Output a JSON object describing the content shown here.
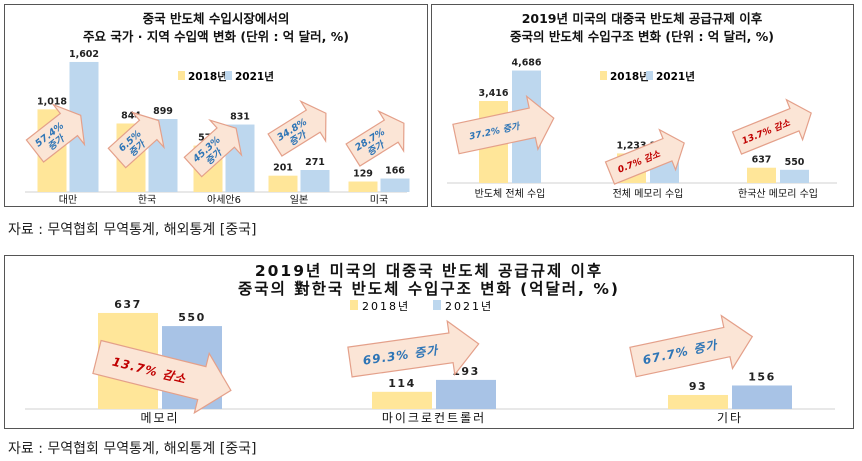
{
  "colors": {
    "y2018": "#FFE699",
    "y2021": "#BDD7EE",
    "y2021_dark": "#A8C3E6",
    "decrease_text": "#C00000",
    "increase_text": "#2E75B6",
    "arrow_fill": "#FBE5D6",
    "arrow_stroke": "#E4A08A"
  },
  "sources": {
    "top": "자료 : 무역협회 무역통계, 해외통계 [중국]",
    "bottom": "자료 : 무역협회 무역통계, 해외통계 [중국]"
  },
  "chart_data": [
    {
      "type": "bar",
      "title": "중국 반도체 수입시장에서의",
      "subtitle": "주요 국가 · 지역 수입액 변화 (단위 : 억 달러, %)",
      "categories": [
        "대만",
        "한국",
        "아세안6",
        "일본",
        "미국"
      ],
      "series": [
        {
          "name": "2018년",
          "values": [
            1018,
            844,
            572,
            201,
            129
          ]
        },
        {
          "name": "2021년",
          "values": [
            1602,
            899,
            831,
            271,
            166
          ]
        }
      ],
      "value_labels": [
        [
          "1,018",
          "844",
          "572",
          "201",
          "129"
        ],
        [
          "1,602",
          "899",
          "831",
          "271",
          "166"
        ]
      ],
      "annotations": [
        {
          "line1": "57.4%",
          "line2": "증가",
          "type": "increase"
        },
        {
          "line1": "6.5%",
          "line2": "증가",
          "type": "increase"
        },
        {
          "line1": "45.3%",
          "line2": "증가",
          "type": "increase"
        },
        {
          "line1": "34.8%",
          "line2": "증가",
          "type": "increase"
        },
        {
          "line1": "28.7%",
          "line2": "증가",
          "type": "increase"
        }
      ],
      "ylim": [
        0,
        1700
      ],
      "legend": "top-right",
      "grid": false
    },
    {
      "type": "bar",
      "title": "2019년 미국의 대중국 반도체 공급규제 이후",
      "subtitle": "중국의 반도체 수입구조 변화 (단위 : 억 달러, %)",
      "categories": [
        "반도체 전체 수입",
        "전체 메모리 수입",
        "한국산 메모리 수입"
      ],
      "series": [
        {
          "name": "2018년",
          "values": [
            3416,
            1233,
            637
          ]
        },
        {
          "name": "2021년",
          "values": [
            4686,
            1224,
            550
          ]
        }
      ],
      "value_labels": [
        [
          "3,416",
          "1,233",
          "637"
        ],
        [
          "4,686",
          "1,224",
          "550"
        ]
      ],
      "annotations": [
        {
          "line1": "37.2% 증가",
          "type": "increase"
        },
        {
          "line1": "0.7% 감소",
          "type": "decrease"
        },
        {
          "line1": "13.7% 감소",
          "type": "decrease"
        }
      ],
      "ylim": [
        0,
        5000
      ],
      "legend": "top-right",
      "grid": false
    },
    {
      "type": "bar",
      "title": "2019년 미국의 대중국 반도체 공급규제 이후",
      "subtitle": "중국의 對한국 반도체 수입구조 변화 (억달러, %)",
      "categories": [
        "메모리",
        "마이크로컨트롤러",
        "기타"
      ],
      "series": [
        {
          "name": "2018년",
          "values": [
            637,
            114,
            93
          ]
        },
        {
          "name": "2021년",
          "values": [
            550,
            193,
            156
          ]
        }
      ],
      "value_labels": [
        [
          "637",
          "114",
          "93"
        ],
        [
          "550",
          "193",
          "156"
        ]
      ],
      "annotations": [
        {
          "line1": "13.7% 감소",
          "type": "decrease"
        },
        {
          "line1": "69.3% 증가",
          "type": "increase"
        },
        {
          "line1": "67.7% 증가",
          "type": "increase"
        }
      ],
      "ylim": [
        0,
        650
      ],
      "legend": "top-center",
      "grid": false
    }
  ]
}
